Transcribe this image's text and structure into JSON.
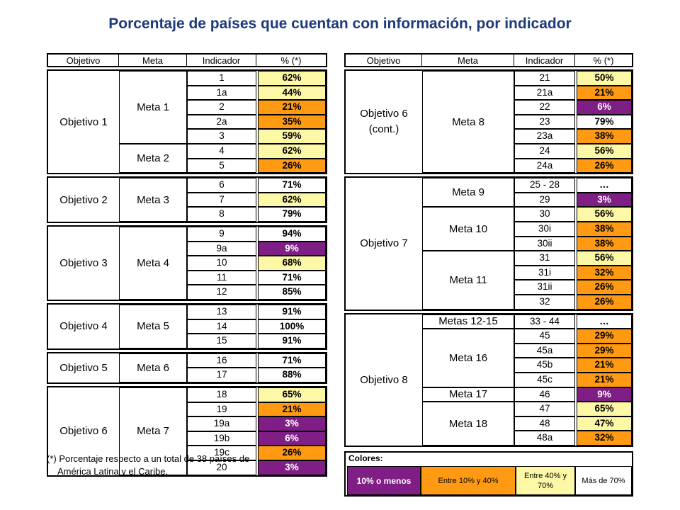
{
  "title": "Porcentaje de países que cuentan con información, por indicador",
  "headers": {
    "objetivo": "Objetivo",
    "meta": "Meta",
    "indicador": "Indicador",
    "pct": "% (*)"
  },
  "colors": {
    "purple": "#7f1e84",
    "orange": "#ff9a12",
    "yellow": "#fdf8a6",
    "white": "#ffffff",
    "title": "#1f3a7a"
  },
  "footnote": {
    "line1": "(*) Porcentaje respecto a un total de 38 países de",
    "line2": "América Latina y el Caribe."
  },
  "legend": {
    "title": "Colores:",
    "items": [
      {
        "label": "10% o menos",
        "color": "purple"
      },
      {
        "label": "Entre 10% y 40%",
        "color": "orange"
      },
      {
        "label": "Entre 40% y 70%",
        "color": "yellow"
      },
      {
        "label": "Más de 70%",
        "color": "white"
      }
    ]
  },
  "chart_data": {
    "type": "table",
    "title": "Porcentaje de países que cuentan con información, por indicador",
    "left": [
      {
        "objetivo": "Objetivo 1",
        "metas": [
          {
            "name": "Meta 1",
            "rows": [
              {
                "ind": "1",
                "pct": "62%",
                "color": "yellow"
              },
              {
                "ind": "1a",
                "pct": "44%",
                "color": "yellow"
              },
              {
                "ind": "2",
                "pct": "21%",
                "color": "orange"
              },
              {
                "ind": "2a",
                "pct": "35%",
                "color": "orange"
              },
              {
                "ind": "3",
                "pct": "59%",
                "color": "yellow"
              }
            ]
          },
          {
            "name": "Meta 2",
            "rows": [
              {
                "ind": "4",
                "pct": "62%",
                "color": "yellow"
              },
              {
                "ind": "5",
                "pct": "26%",
                "color": "orange"
              }
            ]
          }
        ]
      },
      {
        "objetivo": "Objetivo 2",
        "metas": [
          {
            "name": "Meta 3",
            "rows": [
              {
                "ind": "6",
                "pct": "71%",
                "color": "white"
              },
              {
                "ind": "7",
                "pct": "62%",
                "color": "yellow"
              },
              {
                "ind": "8",
                "pct": "79%",
                "color": "white"
              }
            ]
          }
        ]
      },
      {
        "objetivo": "Objetivo 3",
        "metas": [
          {
            "name": "Meta 4",
            "rows": [
              {
                "ind": "9",
                "pct": "94%",
                "color": "white"
              },
              {
                "ind": "9a",
                "pct": "9%",
                "color": "purple"
              },
              {
                "ind": "10",
                "pct": "68%",
                "color": "yellow"
              },
              {
                "ind": "11",
                "pct": "71%",
                "color": "white"
              },
              {
                "ind": "12",
                "pct": "85%",
                "color": "white"
              }
            ]
          }
        ]
      },
      {
        "objetivo": "Objetivo 4",
        "metas": [
          {
            "name": "Meta 5",
            "rows": [
              {
                "ind": "13",
                "pct": "91%",
                "color": "white"
              },
              {
                "ind": "14",
                "pct": "100%",
                "color": "white"
              },
              {
                "ind": "15",
                "pct": "91%",
                "color": "white"
              }
            ]
          }
        ]
      },
      {
        "objetivo": "Objetivo 5",
        "metas": [
          {
            "name": "Meta 6",
            "rows": [
              {
                "ind": "16",
                "pct": "71%",
                "color": "white"
              },
              {
                "ind": "17",
                "pct": "88%",
                "color": "white"
              }
            ]
          }
        ]
      },
      {
        "objetivo": "Objetivo 6",
        "metas": [
          {
            "name": "Meta 7",
            "rows": [
              {
                "ind": "18",
                "pct": "65%",
                "color": "yellow"
              },
              {
                "ind": "19",
                "pct": "21%",
                "color": "orange"
              },
              {
                "ind": "19a",
                "pct": "3%",
                "color": "purple"
              },
              {
                "ind": "19b",
                "pct": "6%",
                "color": "purple"
              },
              {
                "ind": "19c",
                "pct": "26%",
                "color": "orange"
              },
              {
                "ind": "20",
                "pct": "3%",
                "color": "purple"
              }
            ]
          }
        ]
      }
    ],
    "right": [
      {
        "objetivo": "Objetivo 6 (cont.)",
        "metas": [
          {
            "name": "Meta 8",
            "rows": [
              {
                "ind": "21",
                "pct": "50%",
                "color": "yellow"
              },
              {
                "ind": "21a",
                "pct": "21%",
                "color": "orange"
              },
              {
                "ind": "22",
                "pct": "6%",
                "color": "purple"
              },
              {
                "ind": "23",
                "pct": "79%",
                "color": "white"
              },
              {
                "ind": "23a",
                "pct": "38%",
                "color": "orange"
              },
              {
                "ind": "24",
                "pct": "56%",
                "color": "yellow"
              },
              {
                "ind": "24a",
                "pct": "26%",
                "color": "orange"
              }
            ]
          }
        ]
      },
      {
        "objetivo": "Objetivo 7",
        "metas": [
          {
            "name": "Meta 9",
            "rows": [
              {
                "ind": "25 - 28",
                "pct": "…",
                "color": "white"
              },
              {
                "ind": "29",
                "pct": "3%",
                "color": "purple"
              }
            ]
          },
          {
            "name": "Meta 10",
            "rows": [
              {
                "ind": "30",
                "pct": "56%",
                "color": "yellow"
              },
              {
                "ind": "30i",
                "pct": "38%",
                "color": "orange"
              },
              {
                "ind": "30ii",
                "pct": "38%",
                "color": "orange"
              }
            ]
          },
          {
            "name": "Meta 11",
            "rows": [
              {
                "ind": "31",
                "pct": "56%",
                "color": "yellow"
              },
              {
                "ind": "31i",
                "pct": "32%",
                "color": "orange"
              },
              {
                "ind": "31ii",
                "pct": "26%",
                "color": "orange"
              },
              {
                "ind": "32",
                "pct": "26%",
                "color": "orange"
              }
            ]
          }
        ]
      },
      {
        "objetivo": "Objetivo 8",
        "metas": [
          {
            "name": "Metas 12-15",
            "rows": [
              {
                "ind": "33 - 44",
                "pct": "…",
                "color": "white"
              }
            ]
          },
          {
            "name": "Meta 16",
            "rows": [
              {
                "ind": "45",
                "pct": "29%",
                "color": "orange"
              },
              {
                "ind": "45a",
                "pct": "29%",
                "color": "orange"
              },
              {
                "ind": "45b",
                "pct": "21%",
                "color": "orange"
              },
              {
                "ind": "45c",
                "pct": "21%",
                "color": "orange"
              }
            ]
          },
          {
            "name": "Meta 17",
            "rows": [
              {
                "ind": "46",
                "pct": "9%",
                "color": "purple"
              }
            ]
          },
          {
            "name": "Meta 18",
            "rows": [
              {
                "ind": "47",
                "pct": "65%",
                "color": "yellow"
              },
              {
                "ind": "48",
                "pct": "47%",
                "color": "yellow"
              },
              {
                "ind": "48a",
                "pct": "32%",
                "color": "orange"
              }
            ]
          }
        ]
      }
    ]
  }
}
